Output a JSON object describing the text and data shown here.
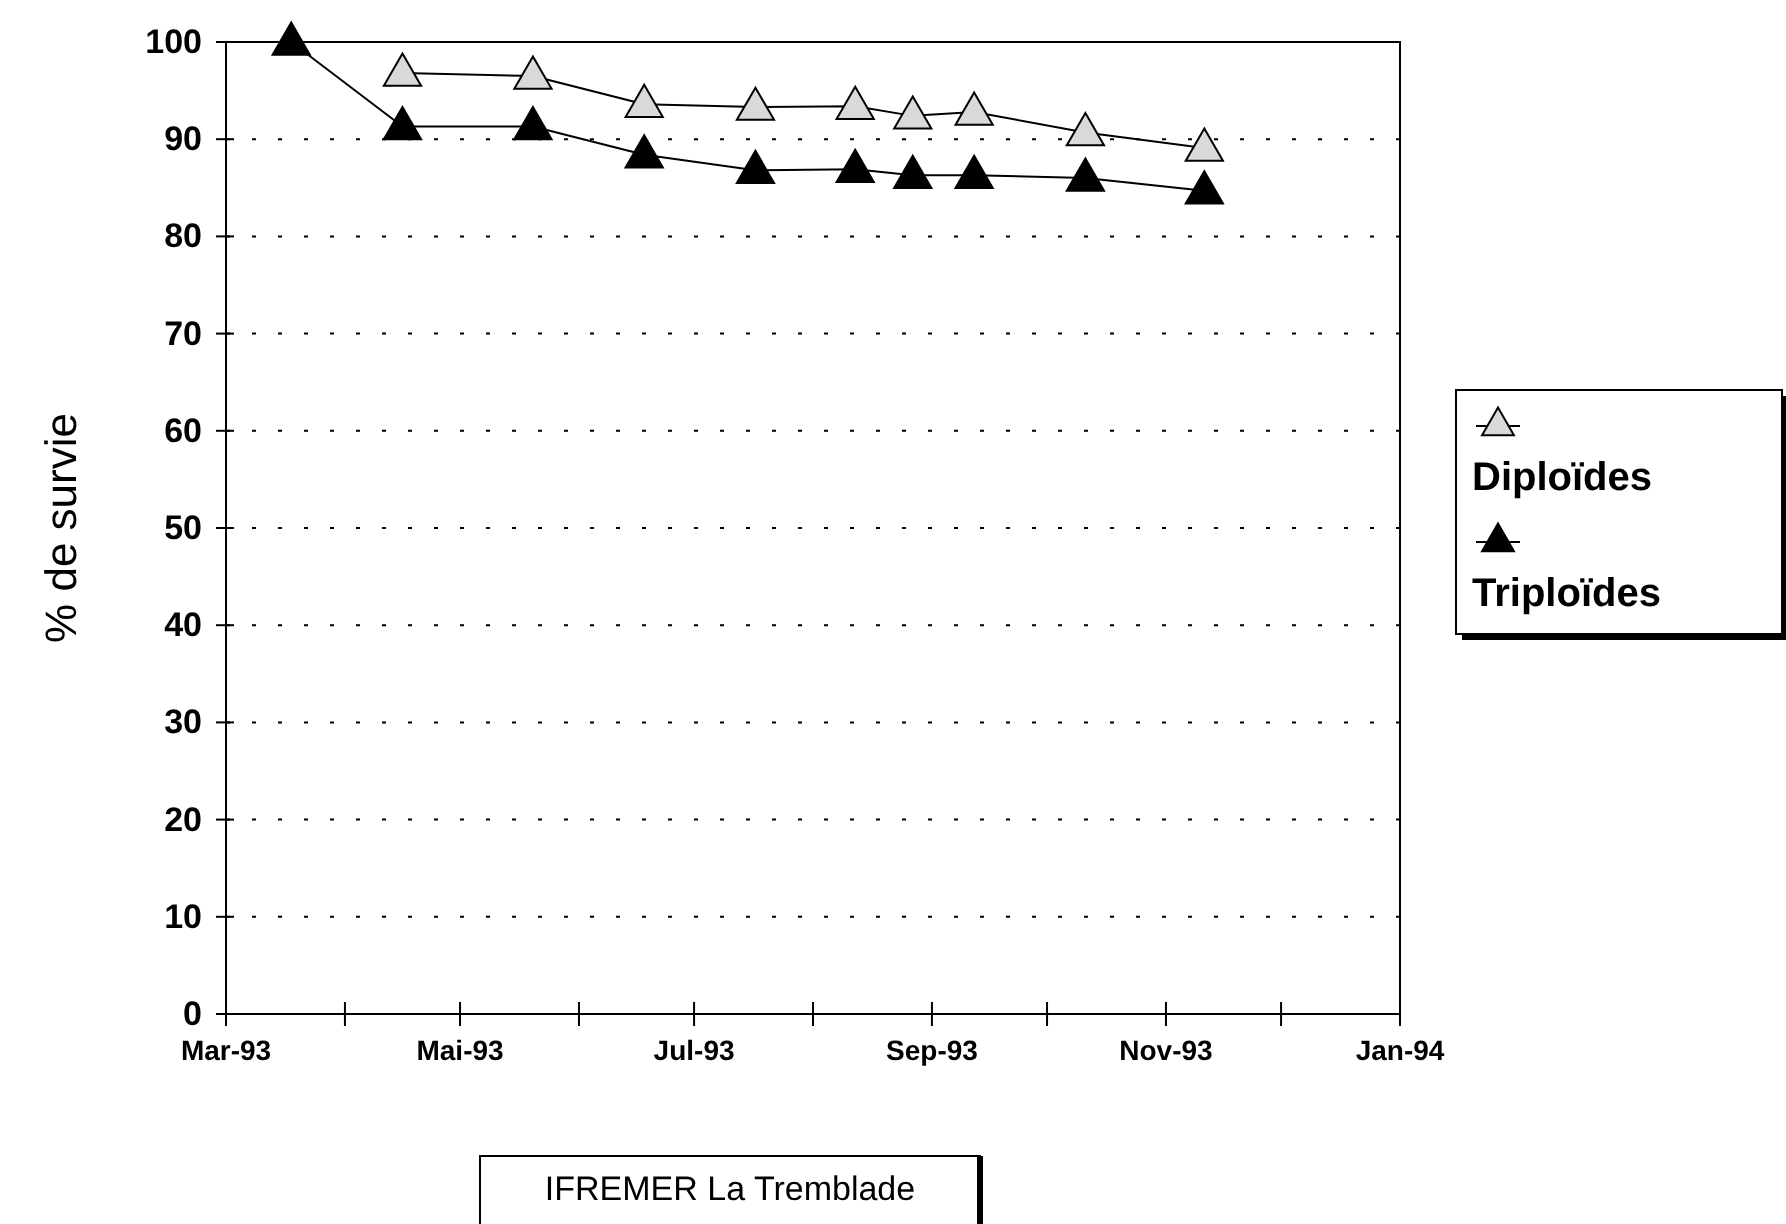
{
  "chart_data": {
    "type": "line",
    "ylabel": "% de survie",
    "x": [
      "1993-03-18",
      "1993-04-16",
      "1993-05-20",
      "1993-06-18",
      "1993-07-17",
      "1993-08-12",
      "1993-08-27",
      "1993-09-12",
      "1993-10-11",
      "1993-11-11"
    ],
    "series": [
      {
        "name": "Diploïdes",
        "color": "#d9d9d9",
        "values": [
          null,
          96.8,
          96.5,
          93.6,
          93.3,
          93.4,
          92.4,
          92.8,
          90.7,
          89.1
        ]
      },
      {
        "name": "Triploïdes",
        "color": "#000000",
        "values": [
          100,
          91.3,
          91.3,
          88.4,
          86.8,
          86.9,
          86.3,
          86.3,
          86.0,
          84.7
        ]
      }
    ],
    "xlim": [
      "1993-03-01",
      "1994-01-01"
    ],
    "xticks": [
      {
        "value": "1993-03-01",
        "label": "Mar-93"
      },
      {
        "value": "1993-04-01",
        "label": null
      },
      {
        "value": "1993-05-01",
        "label": "Mai-93"
      },
      {
        "value": "1993-06-01",
        "label": null
      },
      {
        "value": "1993-07-01",
        "label": "Jul-93"
      },
      {
        "value": "1993-08-01",
        "label": null
      },
      {
        "value": "1993-09-01",
        "label": "Sep-93"
      },
      {
        "value": "1993-10-01",
        "label": null
      },
      {
        "value": "1993-11-01",
        "label": "Nov-93"
      },
      {
        "value": "1993-12-01",
        "label": null
      },
      {
        "value": "1994-01-01",
        "label": "Jan-94"
      }
    ],
    "ylim": [
      0,
      100
    ],
    "yticks": [
      0,
      10,
      20,
      30,
      40,
      50,
      60,
      70,
      80,
      90,
      100
    ],
    "grid": "y",
    "legend": "right",
    "marker": "triangle",
    "line_style": "solid",
    "annotations": [
      "IFREMER La Tremblade"
    ]
  }
}
